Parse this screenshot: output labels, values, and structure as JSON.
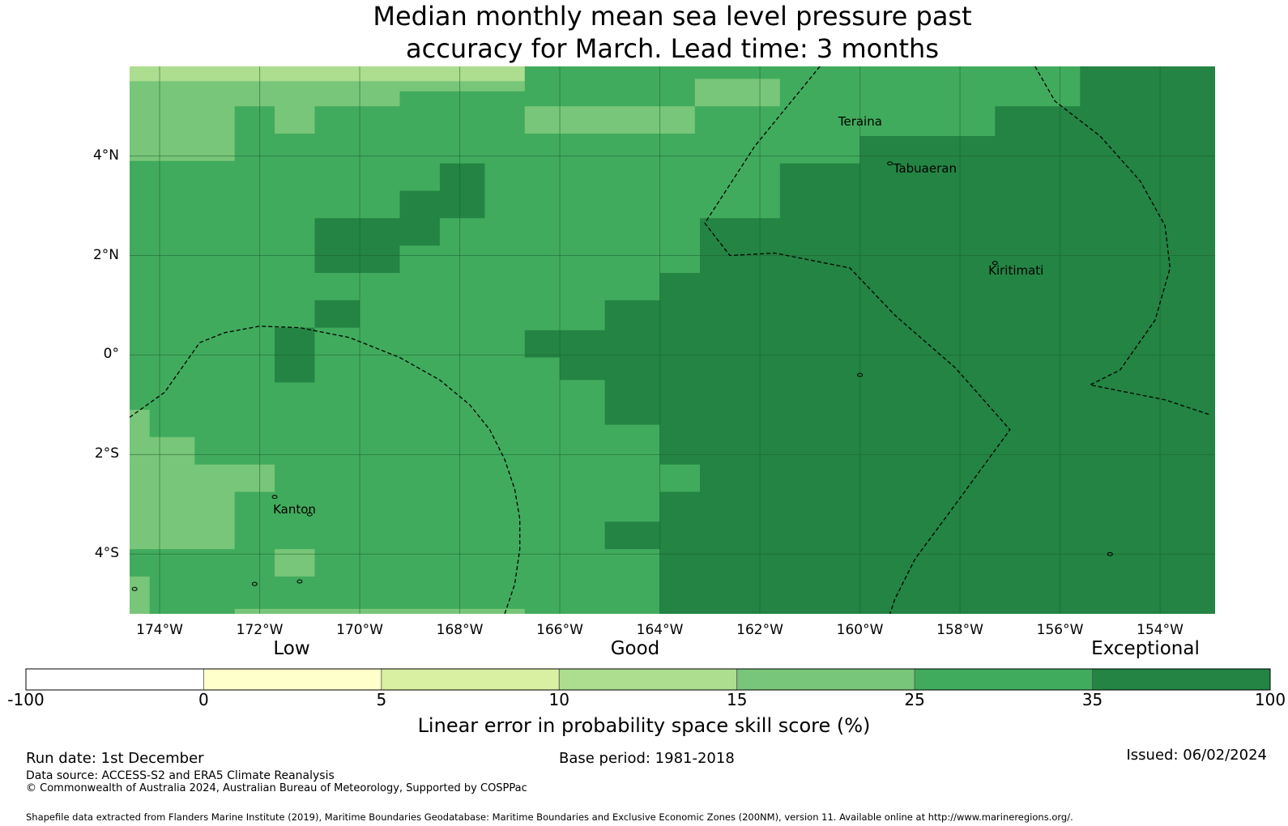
{
  "title_line1": "Median monthly mean sea level pressure past",
  "title_line2": "accuracy for March. Lead time: 3 months",
  "map": {
    "lon_range": [
      -174.6,
      -152.9
    ],
    "lat_range": [
      -5.2,
      5.8
    ],
    "lat_labels": [
      {
        "lat": 4,
        "text": "4°N"
      },
      {
        "lat": 2,
        "text": "2°N"
      },
      {
        "lat": 0,
        "text": "0°"
      },
      {
        "lat": -2,
        "text": "2°S"
      },
      {
        "lat": -4,
        "text": "4°S"
      }
    ],
    "lon_labels": [
      {
        "lon": -174,
        "text": "174°W"
      },
      {
        "lon": -172,
        "text": "172°W"
      },
      {
        "lon": -170,
        "text": "170°W"
      },
      {
        "lon": -168,
        "text": "168°W"
      },
      {
        "lon": -166,
        "text": "166°W"
      },
      {
        "lon": -164,
        "text": "164°W"
      },
      {
        "lon": -162,
        "text": "162°W"
      },
      {
        "lon": -160,
        "text": "160°W"
      },
      {
        "lon": -158,
        "text": "158°W"
      },
      {
        "lon": -156,
        "text": "156°W"
      },
      {
        "lon": -154,
        "text": "154°W"
      }
    ],
    "places": [
      {
        "name": "Teraina",
        "lon": -160.4,
        "lat": 4.7
      },
      {
        "name": "Tabuaeran",
        "lon": -159.3,
        "lat": 3.75
      },
      {
        "name": "Kiritimati",
        "lon": -157.4,
        "lat": 1.7
      },
      {
        "name": "Kanton",
        "lon": -171.7,
        "lat": -3.1
      }
    ],
    "background_color": "#41ab5d",
    "regions": [
      {
        "color": "#238443",
        "lonlat": [
          [
            -164.0,
            -5.2
          ],
          [
            -164.0,
            -1.4
          ],
          [
            -165.1,
            -1.4
          ],
          [
            -165.1,
            -0.5
          ],
          [
            -166.0,
            -0.5
          ],
          [
            -166.0,
            -0.05
          ],
          [
            -166.7,
            -0.05
          ],
          [
            -166.7,
            0.5
          ],
          [
            -165.1,
            0.5
          ],
          [
            -165.1,
            1.1
          ],
          [
            -164.0,
            1.1
          ],
          [
            -164.0,
            1.65
          ],
          [
            -163.2,
            1.65
          ],
          [
            -163.2,
            2.75
          ],
          [
            -161.6,
            2.75
          ],
          [
            -161.6,
            3.85
          ],
          [
            -160.0,
            3.85
          ],
          [
            -160.0,
            4.4
          ],
          [
            -157.3,
            4.4
          ],
          [
            -157.3,
            5.0
          ],
          [
            -155.6,
            5.0
          ],
          [
            -155.6,
            5.8
          ],
          [
            -152.9,
            5.8
          ],
          [
            -152.9,
            -5.2
          ]
        ]
      },
      {
        "color": "#238443",
        "lonlat": [
          [
            -170.9,
            2.75
          ],
          [
            -169.2,
            2.75
          ],
          [
            -169.2,
            3.3
          ],
          [
            -168.4,
            3.3
          ],
          [
            -168.4,
            3.85
          ],
          [
            -167.5,
            3.85
          ],
          [
            -167.5,
            2.75
          ],
          [
            -168.4,
            2.75
          ],
          [
            -168.4,
            2.2
          ],
          [
            -169.2,
            2.2
          ],
          [
            -169.2,
            1.65
          ],
          [
            -170.9,
            1.65
          ]
        ]
      },
      {
        "color": "#238443",
        "lonlat": [
          [
            -170.9,
            1.1
          ],
          [
            -170.0,
            1.1
          ],
          [
            -170.0,
            0.55
          ],
          [
            -170.9,
            0.55
          ]
        ]
      },
      {
        "color": "#238443",
        "lonlat": [
          [
            -171.7,
            0.55
          ],
          [
            -170.9,
            0.55
          ],
          [
            -170.9,
            -0.55
          ],
          [
            -171.7,
            -0.55
          ]
        ]
      },
      {
        "color": "#238443",
        "lonlat": [
          [
            -165.1,
            -3.35
          ],
          [
            -164.0,
            -3.35
          ],
          [
            -164.0,
            -3.9
          ],
          [
            -165.1,
            -3.9
          ]
        ]
      },
      {
        "color": "#78c679",
        "lonlat": [
          [
            -174.6,
            5.5
          ],
          [
            -166.7,
            5.5
          ],
          [
            -166.7,
            5.3
          ],
          [
            -169.2,
            5.3
          ],
          [
            -169.2,
            5.0
          ],
          [
            -170.9,
            5.0
          ],
          [
            -170.9,
            4.45
          ],
          [
            -171.7,
            4.45
          ],
          [
            -171.7,
            5.0
          ],
          [
            -172.5,
            5.0
          ],
          [
            -172.5,
            3.9
          ],
          [
            -174.6,
            3.9
          ]
        ]
      },
      {
        "color": "#addd8e",
        "lonlat": [
          [
            -174.6,
            5.8
          ],
          [
            -166.7,
            5.8
          ],
          [
            -166.7,
            5.5
          ],
          [
            -171.7,
            5.5
          ],
          [
            -171.7,
            5.5
          ],
          [
            -174.6,
            5.5
          ]
        ]
      },
      {
        "color": "#78c679",
        "lonlat": [
          [
            -166.7,
            5.0
          ],
          [
            -163.3,
            5.0
          ],
          [
            -163.3,
            4.45
          ],
          [
            -166.7,
            4.45
          ]
        ]
      },
      {
        "color": "#78c679",
        "lonlat": [
          [
            -163.3,
            5.55
          ],
          [
            -161.6,
            5.55
          ],
          [
            -161.6,
            5.0
          ],
          [
            -163.3,
            5.0
          ]
        ]
      },
      {
        "color": "#78c679",
        "lonlat": [
          [
            -174.6,
            -1.1
          ],
          [
            -174.2,
            -1.1
          ],
          [
            -174.2,
            -1.65
          ],
          [
            -173.3,
            -1.65
          ],
          [
            -173.3,
            -2.2
          ],
          [
            -171.7,
            -2.2
          ],
          [
            -171.7,
            -2.75
          ],
          [
            -172.5,
            -2.75
          ],
          [
            -172.5,
            -3.9
          ],
          [
            -174.6,
            -3.9
          ]
        ]
      },
      {
        "color": "#78c679",
        "lonlat": [
          [
            -171.7,
            -3.9
          ],
          [
            -170.9,
            -3.9
          ],
          [
            -170.9,
            -4.45
          ],
          [
            -171.7,
            -4.45
          ]
        ]
      },
      {
        "color": "#78c679",
        "lonlat": [
          [
            -174.6,
            -4.45
          ],
          [
            -174.2,
            -4.45
          ],
          [
            -174.2,
            -5.2
          ],
          [
            -174.6,
            -5.2
          ]
        ]
      },
      {
        "color": "#78c679",
        "lonlat": [
          [
            -172.5,
            -5.1
          ],
          [
            -166.7,
            -5.1
          ],
          [
            -166.7,
            -5.2
          ],
          [
            -172.5,
            -5.2
          ]
        ]
      },
      {
        "color": "#41ab5d",
        "lonlat": [
          [
            -164.0,
            -2.2
          ],
          [
            -163.2,
            -2.2
          ],
          [
            -163.2,
            -2.75
          ],
          [
            -164.0,
            -2.75
          ]
        ]
      }
    ],
    "boundaries": [
      [
        [
          -174.6,
          -1.25
        ],
        [
          -173.9,
          -0.75
        ],
        [
          -173.2,
          0.25
        ],
        [
          -172.7,
          0.45
        ],
        [
          -172.0,
          0.58
        ],
        [
          -171.2,
          0.55
        ],
        [
          -170.2,
          0.35
        ],
        [
          -169.2,
          -0.05
        ],
        [
          -168.4,
          -0.5
        ],
        [
          -167.8,
          -1.0
        ],
        [
          -167.4,
          -1.5
        ],
        [
          -167.1,
          -2.1
        ],
        [
          -166.9,
          -2.7
        ],
        [
          -166.8,
          -3.3
        ],
        [
          -166.8,
          -3.9
        ],
        [
          -166.9,
          -4.6
        ],
        [
          -167.1,
          -5.2
        ]
      ],
      [
        [
          -160.8,
          5.8
        ],
        [
          -162.1,
          4.2
        ],
        [
          -163.1,
          2.65
        ],
        [
          -162.6,
          2.0
        ],
        [
          -161.7,
          2.05
        ],
        [
          -160.2,
          1.75
        ],
        [
          -159.3,
          0.8
        ],
        [
          -158.1,
          -0.25
        ],
        [
          -157.0,
          -1.5
        ],
        [
          -158.2,
          -3.15
        ],
        [
          -158.9,
          -4.1
        ],
        [
          -159.3,
          -4.9
        ],
        [
          -159.4,
          -5.2
        ]
      ],
      [
        [
          -156.5,
          5.8
        ],
        [
          -156.1,
          5.1
        ],
        [
          -155.2,
          4.4
        ],
        [
          -154.4,
          3.5
        ],
        [
          -153.9,
          2.6
        ],
        [
          -153.8,
          1.75
        ],
        [
          -154.1,
          0.7
        ],
        [
          -154.8,
          -0.3
        ],
        [
          -155.4,
          -0.6
        ],
        [
          -153.9,
          -0.9
        ],
        [
          -153.0,
          -1.2
        ]
      ]
    ],
    "islands": [
      {
        "lon": -171.7,
        "lat": -2.85
      },
      {
        "lon": -171.0,
        "lat": -3.2
      },
      {
        "lon": -172.1,
        "lat": -4.6
      },
      {
        "lon": -171.2,
        "lat": -4.55
      },
      {
        "lon": -174.5,
        "lat": -4.7
      },
      {
        "lon": -159.4,
        "lat": 3.85
      },
      {
        "lon": -157.3,
        "lat": 1.85
      },
      {
        "lon": -160.0,
        "lat": -0.4
      },
      {
        "lon": -155.0,
        "lat": -4.0
      }
    ]
  },
  "categories": [
    {
      "text": "Low",
      "value": 2.5
    },
    {
      "text": "Good",
      "value": 15
    },
    {
      "text": "Exceptional",
      "value": 100
    }
  ],
  "colorbar": {
    "bins": [
      {
        "from": "-100",
        "to": "0",
        "color": "#ffffff"
      },
      {
        "from": "0",
        "to": "5",
        "color": "#ffffcc"
      },
      {
        "from": "5",
        "to": "10",
        "color": "#d9f0a3"
      },
      {
        "from": "10",
        "to": "15",
        "color": "#addd8e"
      },
      {
        "from": "15",
        "to": "25",
        "color": "#78c679"
      },
      {
        "from": "25",
        "to": "35",
        "color": "#41ab5d"
      },
      {
        "from": "35",
        "to": "100",
        "color": "#238443"
      }
    ],
    "ticks": [
      "-100",
      "0",
      "5",
      "10",
      "15",
      "25",
      "35",
      "100"
    ],
    "label": "Linear error in probability space skill score (%)"
  },
  "footer": {
    "run_date": "Run date: 1st December",
    "base_period": "Base period: 1981-2018",
    "issued": "Issued: 06/02/2024",
    "data_source": "Data source: ACCESS-S2 and ERA5 Climate Reanalysis",
    "copyright": "© Commonwealth of Australia 2024, Australian Bureau of Meteorology, Supported by COSPPac",
    "shapefile": "Shapefile data extracted from Flanders Marine Institute (2019), Maritime Boundaries Geodatabase: Maritime Boundaries and Exclusive Economic Zones (200NM), version 11. Available online at http://www.marineregions.org/."
  }
}
